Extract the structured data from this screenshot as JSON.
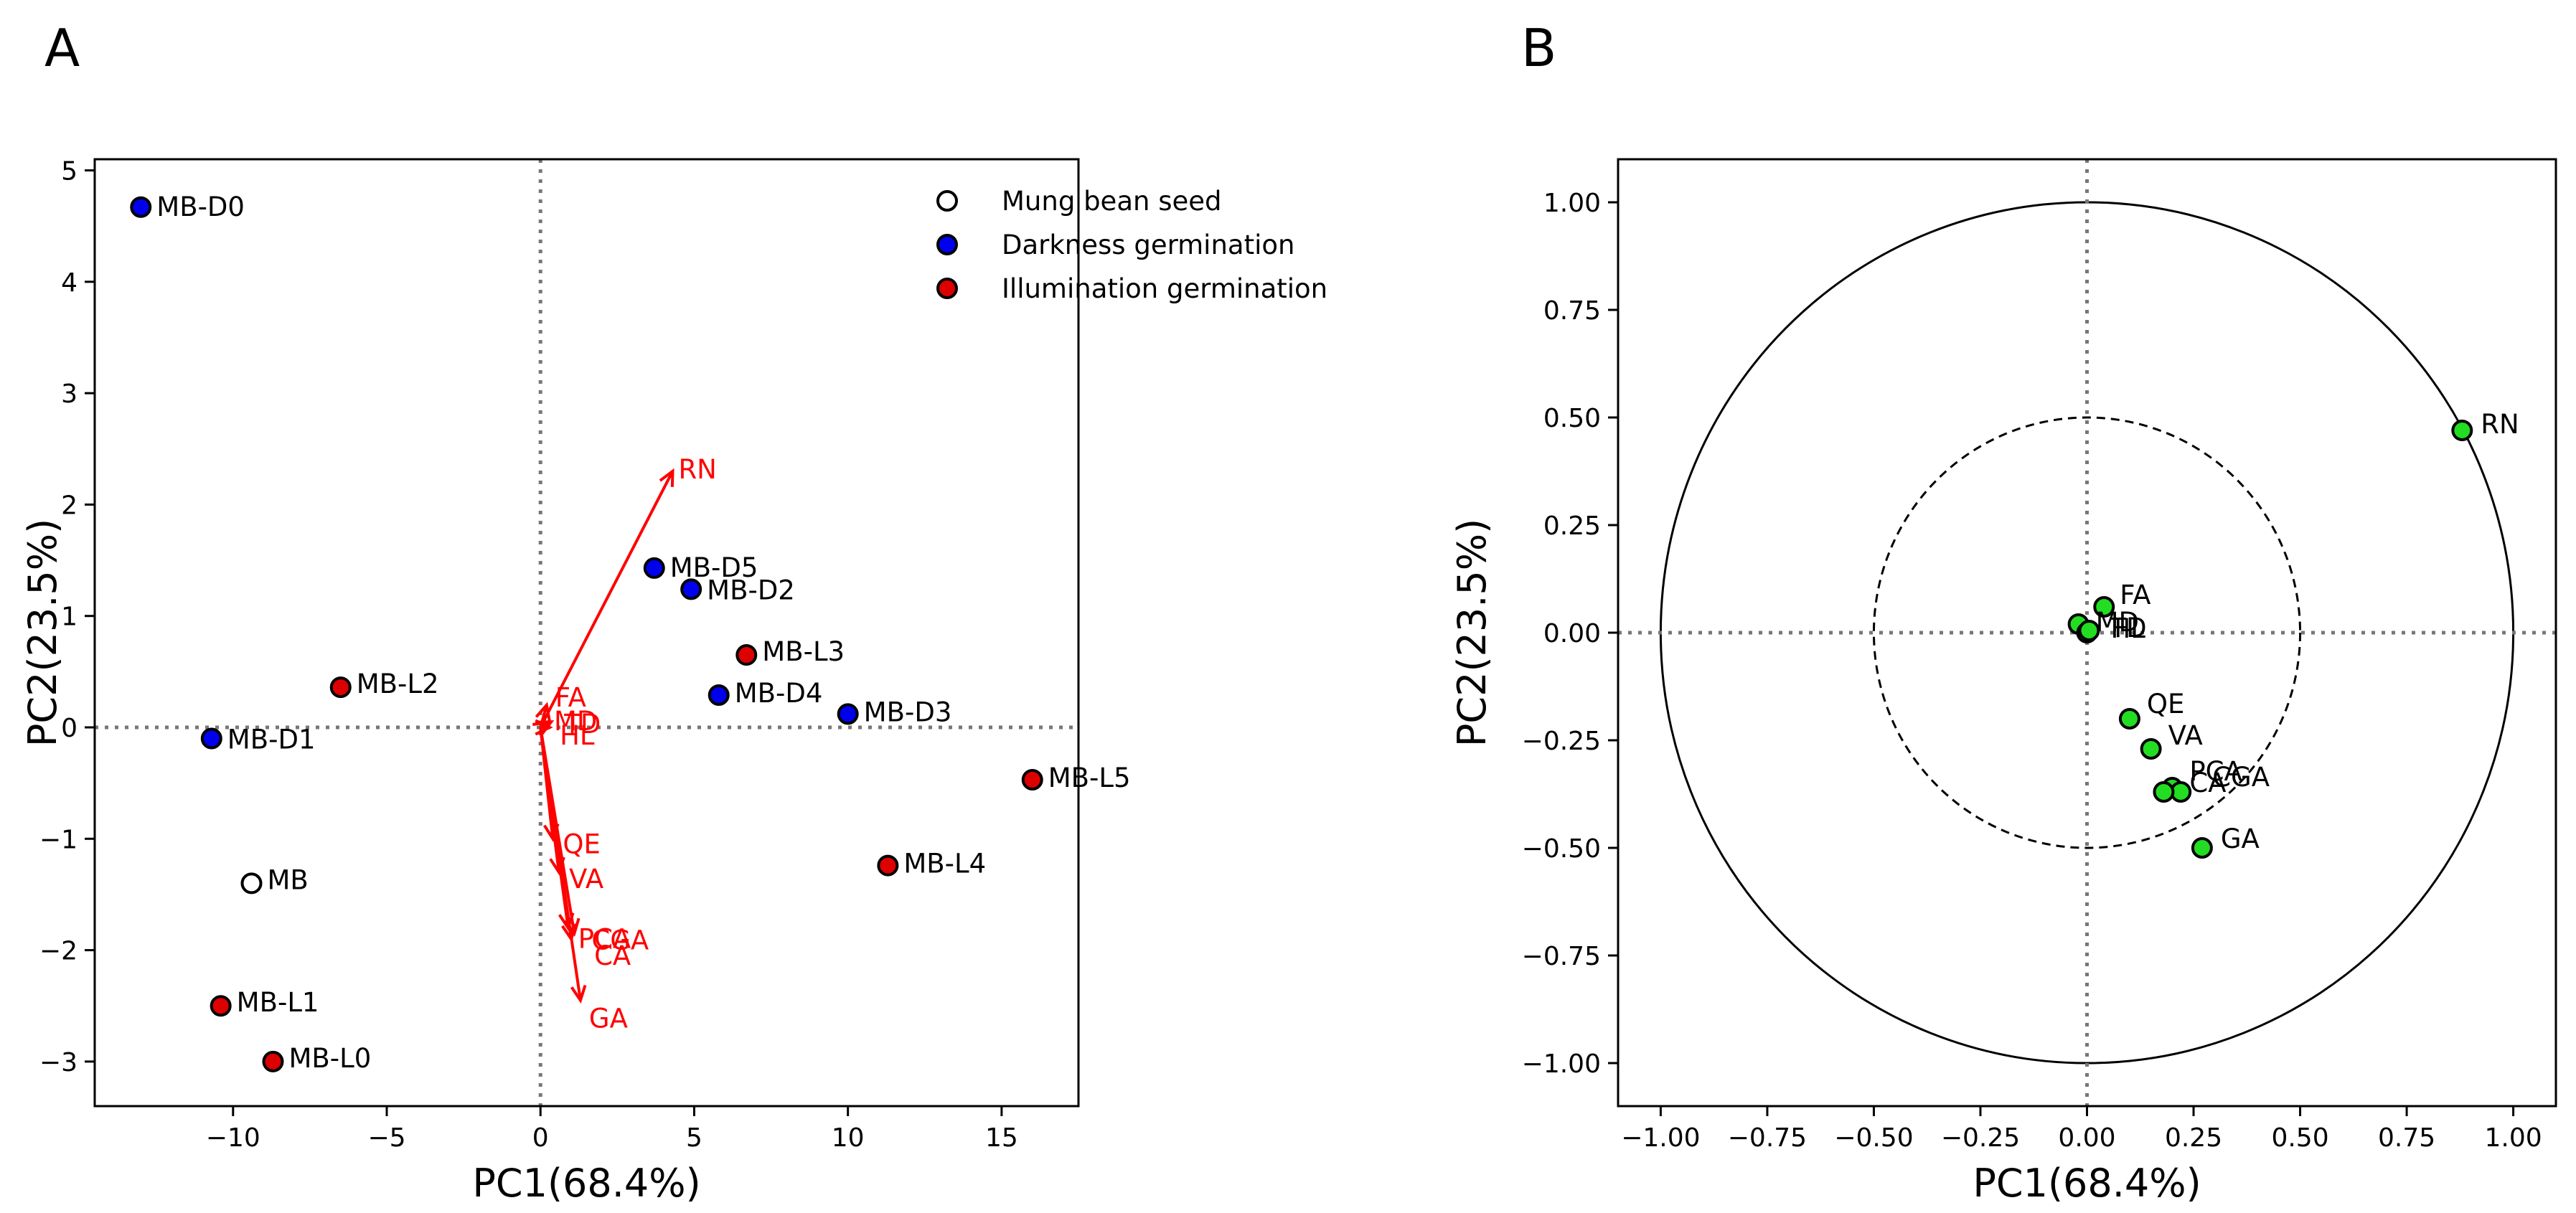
{
  "chart_data": [
    {
      "type": "scatter",
      "panel_label": "A",
      "title": "",
      "xlabel": "PC1(68.4%)",
      "ylabel": "PC2(23.5%)",
      "xlim": [
        -14.5,
        17.5
      ],
      "ylim": [
        -3.4,
        5.1
      ],
      "xticks": [
        -10,
        -5,
        0,
        5,
        10,
        15
      ],
      "xtick_labels": [
        "−10",
        "−5",
        "0",
        "5",
        "10",
        "15"
      ],
      "yticks": [
        -3,
        -2,
        -1,
        0,
        1,
        2,
        3,
        4,
        5
      ],
      "ytick_labels": [
        "−3",
        "−2",
        "−1",
        "0",
        "1",
        "2",
        "3",
        "4",
        "5"
      ],
      "reference_lines": {
        "x": 0,
        "y": 0,
        "style": "dotted"
      },
      "legend": {
        "position": "top-right",
        "entries": [
          {
            "label": "Mung bean seed",
            "fill": "#ffffff"
          },
          {
            "label": "Darkness germination",
            "fill": "#0000ee"
          },
          {
            "label": "Illumination germination",
            "fill": "#dd0000"
          }
        ]
      },
      "series": [
        {
          "name": "Mung bean seed",
          "fill": "#ffffff",
          "points": [
            {
              "label": "MB",
              "x": -9.4,
              "y": -1.4
            }
          ]
        },
        {
          "name": "Darkness germination",
          "fill": "#0000ee",
          "points": [
            {
              "label": "MB-D0",
              "x": -13.0,
              "y": 4.67
            },
            {
              "label": "MB-D1",
              "x": -10.7,
              "y": -0.1
            },
            {
              "label": "MB-D5",
              "x": 3.7,
              "y": 1.43
            },
            {
              "label": "MB-D2",
              "x": 4.9,
              "y": 1.24
            },
            {
              "label": "MB-D4",
              "x": 5.8,
              "y": 0.29
            },
            {
              "label": "MB-D3",
              "x": 10.0,
              "y": 0.12
            }
          ]
        },
        {
          "name": "Illumination germination",
          "fill": "#dd0000",
          "points": [
            {
              "label": "MB-L2",
              "x": -6.5,
              "y": 0.36
            },
            {
              "label": "MB-L3",
              "x": 6.7,
              "y": 0.65
            },
            {
              "label": "MB-L5",
              "x": 16.0,
              "y": -0.47
            },
            {
              "label": "MB-L4",
              "x": 11.3,
              "y": -1.24
            },
            {
              "label": "MB-L1",
              "x": -10.4,
              "y": -2.5
            },
            {
              "label": "MB-L0",
              "x": -8.7,
              "y": -3.0
            }
          ]
        }
      ],
      "loadings": {
        "color": "#ff0000",
        "vectors": [
          {
            "label": "RN",
            "x": 4.3,
            "y": 2.3
          },
          {
            "label": "FA",
            "x": 0.2,
            "y": 0.2
          },
          {
            "label": "MD",
            "x": 0.25,
            "y": 0.05
          },
          {
            "label": "TD",
            "x": 0.35,
            "y": 0.05
          },
          {
            "label": "HL",
            "x": 0.3,
            "y": 0.0
          },
          {
            "label": "QE",
            "x": 0.4,
            "y": -1.0
          },
          {
            "label": "VA",
            "x": 0.6,
            "y": -1.3
          },
          {
            "label": "PCA",
            "x": 0.9,
            "y": -1.8
          },
          {
            "label": "CGA",
            "x": 1.1,
            "y": -1.85
          },
          {
            "label": "CA",
            "x": 1.0,
            "y": -1.9
          },
          {
            "label": "GA",
            "x": 1.3,
            "y": -2.45
          }
        ]
      }
    },
    {
      "type": "scatter",
      "panel_label": "B",
      "title": "",
      "xlabel": "PC1(68.4%)",
      "ylabel": "PC2(23.5%)",
      "xlim": [
        -1.1,
        1.1
      ],
      "ylim": [
        -1.1,
        1.1
      ],
      "xticks": [
        -1.0,
        -0.75,
        -0.5,
        -0.25,
        0.0,
        0.25,
        0.5,
        0.75,
        1.0
      ],
      "xtick_labels": [
        "−1.00",
        "−0.75",
        "−0.50",
        "−0.25",
        "0.00",
        "0.25",
        "0.50",
        "0.75",
        "1.00"
      ],
      "yticks": [
        -1.0,
        -0.75,
        -0.5,
        -0.25,
        0.0,
        0.25,
        0.5,
        0.75,
        1.0
      ],
      "ytick_labels": [
        "−1.00",
        "−0.75",
        "−0.50",
        "−0.25",
        "0.00",
        "0.25",
        "0.50",
        "0.75",
        "1.00"
      ],
      "reference_lines": {
        "x": 0,
        "y": 0,
        "style": "dotted"
      },
      "circles": [
        {
          "r": 1.0,
          "style": "solid"
        },
        {
          "r": 0.5,
          "style": "dashed"
        }
      ],
      "point_fill": "#22dd22",
      "points": [
        {
          "label": "RN",
          "x": 0.88,
          "y": 0.47
        },
        {
          "label": "FA",
          "x": 0.04,
          "y": 0.06
        },
        {
          "label": "MD",
          "x": -0.02,
          "y": 0.02
        },
        {
          "label": "TD",
          "x": 0.0,
          "y": 0.0
        },
        {
          "label": "HL",
          "x": 0.005,
          "y": 0.005
        },
        {
          "label": "QE",
          "x": 0.1,
          "y": -0.2
        },
        {
          "label": "VA",
          "x": 0.15,
          "y": -0.27
        },
        {
          "label": "PCA",
          "x": 0.2,
          "y": -0.36
        },
        {
          "label": "CGA",
          "x": 0.22,
          "y": -0.37
        },
        {
          "label": "CA",
          "x": 0.18,
          "y": -0.37
        },
        {
          "label": "GA",
          "x": 0.27,
          "y": -0.5
        }
      ]
    }
  ]
}
